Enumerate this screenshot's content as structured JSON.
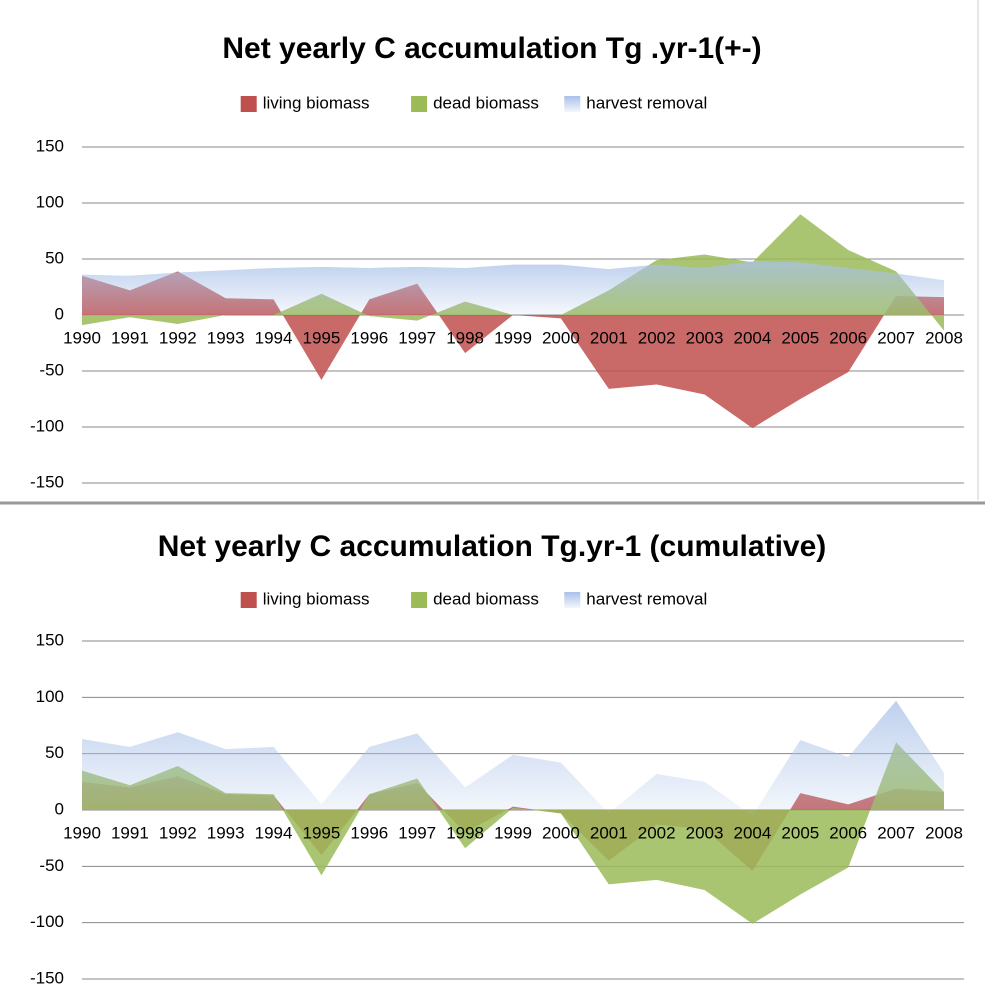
{
  "chart_data": [
    {
      "type": "area",
      "title": "Net yearly C accumulation Tg .yr-1(+-)",
      "categories": [
        "1990",
        "1991",
        "1992",
        "1993",
        "1994",
        "1995",
        "1996",
        "1997",
        "1998",
        "1999",
        "2000",
        "2001",
        "2002",
        "2003",
        "2004",
        "2005",
        "2006",
        "2007",
        "2008"
      ],
      "series": [
        {
          "name": "living biomass",
          "color": "#c0504d",
          "values": [
            35,
            22,
            39,
            15,
            14,
            -58,
            14,
            28,
            -34,
            0,
            -3,
            -66,
            -62,
            -71,
            -101,
            -75,
            -51,
            17,
            16
          ]
        },
        {
          "name": "dead biomass",
          "color": "#9bbb59",
          "values": [
            -9,
            -2,
            -8,
            0,
            0,
            19,
            -1,
            -5,
            12,
            0,
            0,
            22,
            49,
            54,
            47,
            90,
            58,
            39,
            -14
          ]
        },
        {
          "name": "harvest removal",
          "color": "#a9c1e8",
          "values": [
            36,
            35,
            38,
            40,
            42,
            43,
            42,
            43,
            42,
            45,
            45,
            41,
            45,
            42,
            48,
            47,
            42,
            37,
            31
          ]
        }
      ],
      "ylim": [
        -150,
        150
      ],
      "yticks": [
        -150,
        -100,
        -50,
        0,
        50,
        100,
        150
      ],
      "grid": true,
      "legend": "top"
    },
    {
      "type": "area",
      "title": "Net yearly C accumulation Tg.yr-1 (cumulative)",
      "categories": [
        "1990",
        "1991",
        "1992",
        "1993",
        "1994",
        "1995",
        "1996",
        "1997",
        "1998",
        "1999",
        "2000",
        "2001",
        "2002",
        "2003",
        "2004",
        "2005",
        "2006",
        "2007",
        "2008"
      ],
      "series": [
        {
          "name": "living biomass",
          "color": "#c0504d",
          "values": [
            25,
            20,
            30,
            14,
            13,
            -40,
            14,
            24,
            -20,
            3,
            -3,
            -45,
            -13,
            -17,
            -54,
            15,
            5,
            19,
            16
          ]
        },
        {
          "name": "dead biomass",
          "color": "#9bbb59",
          "values": [
            35,
            22,
            39,
            15,
            14,
            -58,
            14,
            28,
            -34,
            2,
            -3,
            -66,
            -62,
            -71,
            -101,
            -75,
            -51,
            60,
            16
          ]
        },
        {
          "name": "harvest removal",
          "color": "#a9c1e8",
          "values": [
            63,
            56,
            69,
            54,
            56,
            5,
            56,
            68,
            20,
            49,
            42,
            -3,
            32,
            25,
            -5,
            62,
            47,
            97,
            33
          ]
        }
      ],
      "ylim": [
        -150,
        150
      ],
      "yticks": [
        -150,
        -100,
        -50,
        0,
        50,
        100,
        150
      ],
      "grid": true,
      "legend": "top"
    }
  ]
}
